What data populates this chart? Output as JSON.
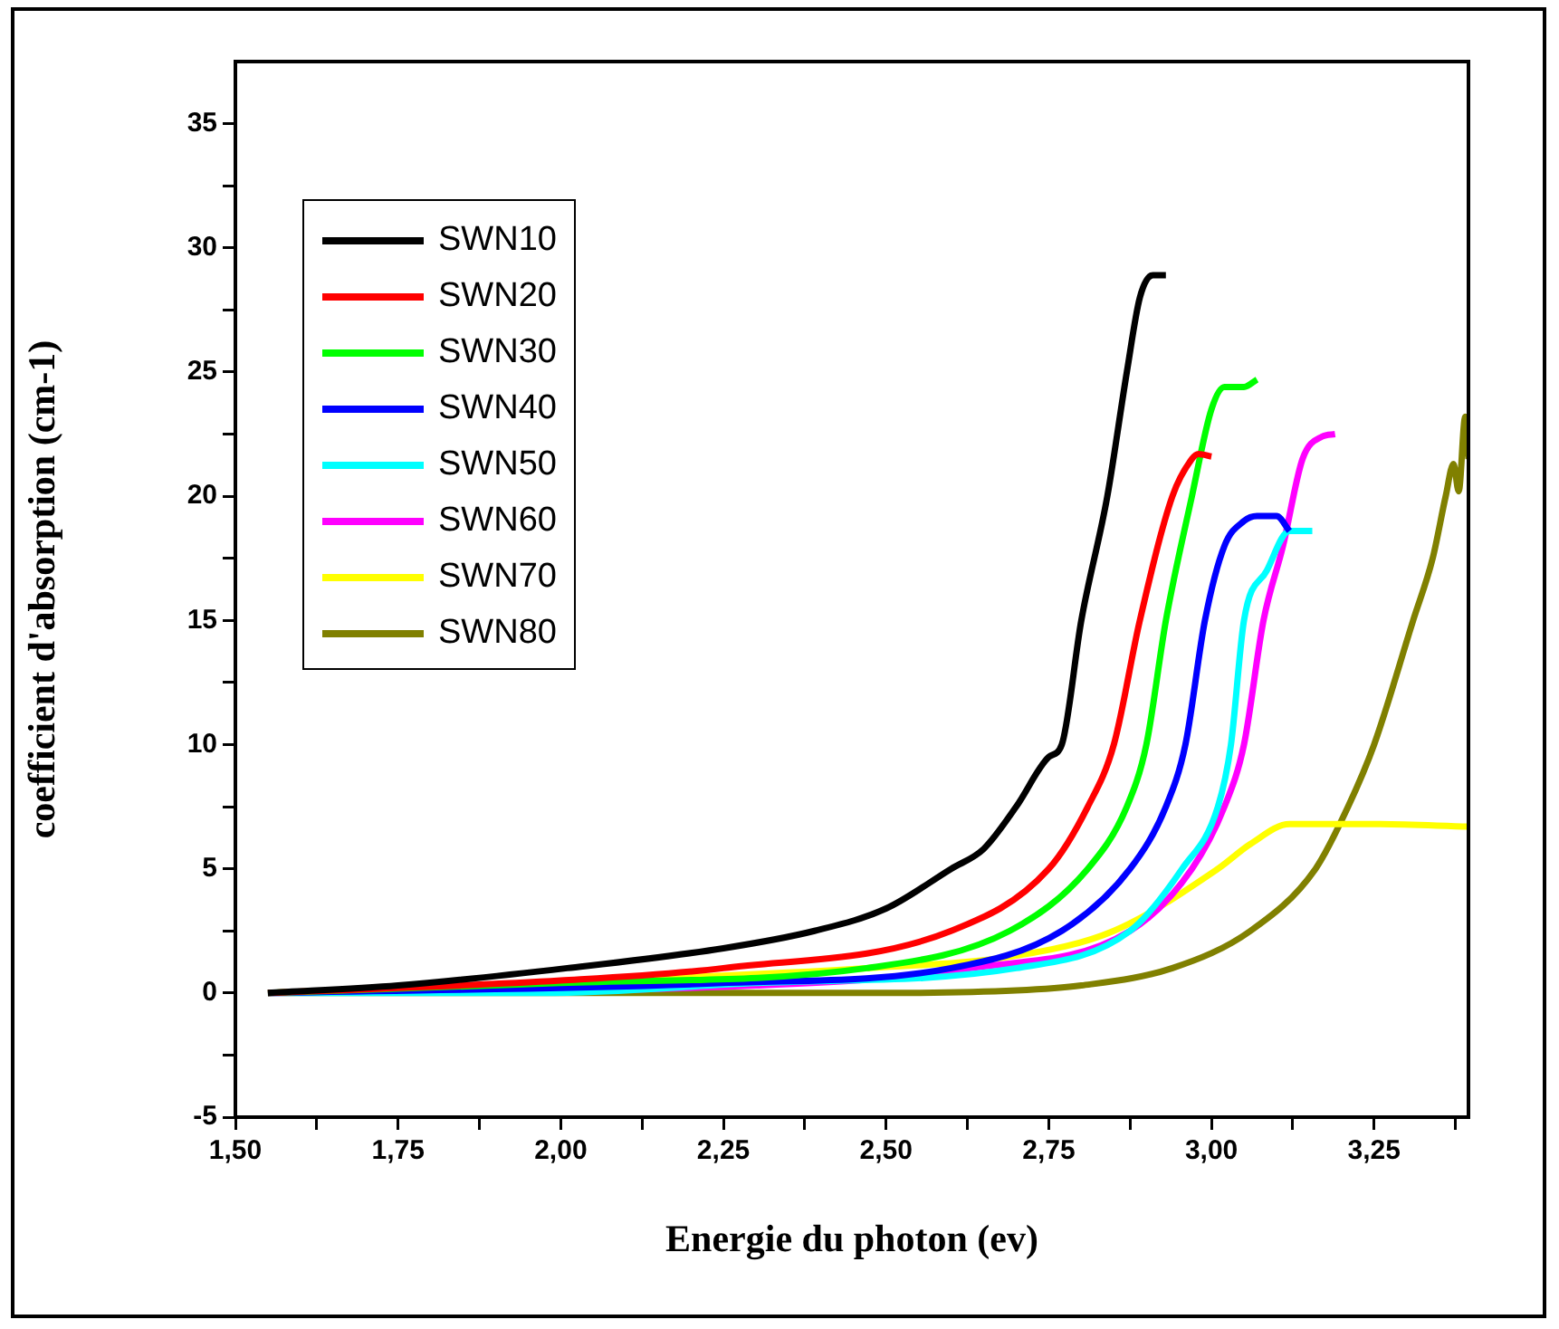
{
  "chart_data": {
    "type": "line",
    "xlabel": "Energie du photon (ev)",
    "ylabel": "coefficient d'absorption (cm-1)",
    "xlim": [
      1.5,
      3.395
    ],
    "ylim": [
      -5,
      37.5
    ],
    "xticks": [
      {
        "value": 1.5,
        "label": "1,50"
      },
      {
        "value": 1.625,
        "label": null
      },
      {
        "value": 1.75,
        "label": "1,75"
      },
      {
        "value": 1.875,
        "label": null
      },
      {
        "value": 2.0,
        "label": "2,00"
      },
      {
        "value": 2.125,
        "label": null
      },
      {
        "value": 2.25,
        "label": "2,25"
      },
      {
        "value": 2.375,
        "label": null
      },
      {
        "value": 2.5,
        "label": "2,50"
      },
      {
        "value": 2.625,
        "label": null
      },
      {
        "value": 2.75,
        "label": "2,75"
      },
      {
        "value": 2.875,
        "label": null
      },
      {
        "value": 3.0,
        "label": "3,00"
      },
      {
        "value": 3.125,
        "label": null
      },
      {
        "value": 3.25,
        "label": "3,25"
      },
      {
        "value": 3.375,
        "label": null
      }
    ],
    "yticks": [
      -5,
      {
        "value": -2.5,
        "label": null
      },
      0,
      {
        "value": 2.5,
        "label": null
      },
      5,
      {
        "value": 7.5,
        "label": null
      },
      10,
      {
        "value": 12.5,
        "label": null
      },
      15,
      {
        "value": 17.5,
        "label": null
      },
      20,
      {
        "value": 22.5,
        "label": null
      },
      25,
      {
        "value": 27.5,
        "label": null
      },
      30,
      {
        "value": 32.5,
        "label": null
      },
      35
    ],
    "grid": false,
    "legend": "top left",
    "marker": "none",
    "line_style": "solid",
    "series": [
      {
        "name": "SWN10",
        "color": "#000000",
        "x": [
          1.55,
          1.75,
          2.01,
          2.25,
          2.39,
          2.5,
          2.6,
          2.65,
          2.7,
          2.75,
          2.77,
          2.8,
          2.84,
          2.87,
          2.89,
          2.91,
          2.93
        ],
        "values": [
          0,
          0.3,
          1,
          1.8,
          2.5,
          3.4,
          5,
          5.8,
          7.5,
          9.5,
          10,
          15,
          20,
          25,
          28,
          28.9,
          28.9
        ]
      },
      {
        "name": "SWN20",
        "color": "#ff0000",
        "x": [
          1.55,
          2.0,
          2.25,
          2.6,
          2.75,
          2.81,
          2.85,
          2.89,
          2.94,
          2.97,
          2.98,
          3.0
        ],
        "values": [
          0,
          0.5,
          1,
          2.5,
          5,
          7.5,
          10,
          15,
          20,
          21.5,
          21.7,
          21.6
        ]
      },
      {
        "name": "SWN30",
        "color": "#00ff00",
        "x": [
          1.55,
          2.0,
          2.47,
          2.69,
          2.81,
          2.87,
          2.9,
          2.93,
          2.97,
          3.0,
          3.02,
          3.05,
          3.07
        ],
        "values": [
          0,
          0.4,
          1,
          2.5,
          5,
          7.5,
          10,
          15,
          20,
          23.5,
          24.4,
          24.4,
          24.7
        ]
      },
      {
        "name": "SWN40",
        "color": "#0000ff",
        "x": [
          1.55,
          2.25,
          2.6,
          2.77,
          2.875,
          2.93,
          2.96,
          2.99,
          3.02,
          3.05,
          3.07,
          3.1,
          3.12
        ],
        "values": [
          0,
          0.4,
          1,
          2.5,
          5,
          7.5,
          10,
          15,
          18,
          19,
          19.2,
          19.2,
          18.6
        ]
      },
      {
        "name": "SWN50",
        "color": "#00ffff",
        "x": [
          1.55,
          1.97,
          2.3,
          2.7,
          2.875,
          2.955,
          3.01,
          3.03,
          3.05,
          3.085,
          3.12,
          3.155
        ],
        "values": [
          0,
          0,
          0.4,
          1,
          2.5,
          5,
          7.5,
          10,
          15,
          17,
          18.6,
          18.6
        ]
      },
      {
        "name": "SWN60",
        "color": "#ff00ff",
        "x": [
          1.55,
          2.3,
          2.63,
          2.875,
          2.97,
          3.02,
          3.05,
          3.08,
          3.11,
          3.14,
          3.17,
          3.19
        ],
        "values": [
          0,
          0.3,
          1,
          2.5,
          5,
          7.5,
          10,
          15,
          18,
          21.5,
          22.4,
          22.5
        ]
      },
      {
        "name": "SWN70",
        "color": "#ffff00",
        "x": [
          1.55,
          2.47,
          2.7,
          2.85,
          3.01,
          3.06,
          3.12,
          3.25,
          3.395
        ],
        "values": [
          0,
          1,
          1.5,
          2.5,
          5,
          6,
          6.8,
          6.8,
          6.7
        ]
      },
      {
        "name": "SWN80",
        "color": "#808000",
        "x": [
          1.55,
          2.5,
          2.7,
          2.8,
          2.94,
          3.06,
          3.16,
          3.21,
          3.25,
          3.31,
          3.34,
          3.36,
          3.372,
          3.38,
          3.39,
          3.395
        ],
        "values": [
          0,
          0,
          0.1,
          0.3,
          1,
          2.5,
          5,
          7.5,
          10,
          15,
          17.5,
          20,
          21.3,
          20.2,
          23.2,
          21.5
        ]
      }
    ]
  }
}
